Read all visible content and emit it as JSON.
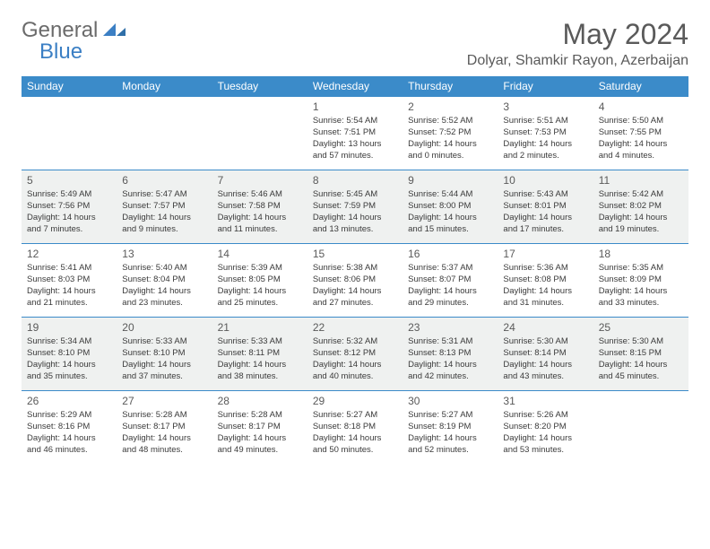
{
  "logo": {
    "text1": "General",
    "text2": "Blue"
  },
  "title": "May 2024",
  "location": "Dolyar, Shamkir Rayon, Azerbaijan",
  "days_of_week": [
    "Sunday",
    "Monday",
    "Tuesday",
    "Wednesday",
    "Thursday",
    "Friday",
    "Saturday"
  ],
  "colors": {
    "header_bg": "#3b8bc9",
    "header_text": "#ffffff",
    "shaded_row": "#eff1f0",
    "rule": "#3b8bc9",
    "text": "#3a3a3a",
    "title_text": "#5a5a5a",
    "logo_gray": "#6b6b6b",
    "logo_blue": "#3b7fc4"
  },
  "weeks": [
    {
      "shaded": false,
      "cells": [
        {
          "empty": true
        },
        {
          "empty": true
        },
        {
          "empty": true
        },
        {
          "day": "1",
          "sunrise": "Sunrise: 5:54 AM",
          "sunset": "Sunset: 7:51 PM",
          "daylight": "Daylight: 13 hours and 57 minutes."
        },
        {
          "day": "2",
          "sunrise": "Sunrise: 5:52 AM",
          "sunset": "Sunset: 7:52 PM",
          "daylight": "Daylight: 14 hours and 0 minutes."
        },
        {
          "day": "3",
          "sunrise": "Sunrise: 5:51 AM",
          "sunset": "Sunset: 7:53 PM",
          "daylight": "Daylight: 14 hours and 2 minutes."
        },
        {
          "day": "4",
          "sunrise": "Sunrise: 5:50 AM",
          "sunset": "Sunset: 7:55 PM",
          "daylight": "Daylight: 14 hours and 4 minutes."
        }
      ]
    },
    {
      "shaded": true,
      "cells": [
        {
          "day": "5",
          "sunrise": "Sunrise: 5:49 AM",
          "sunset": "Sunset: 7:56 PM",
          "daylight": "Daylight: 14 hours and 7 minutes."
        },
        {
          "day": "6",
          "sunrise": "Sunrise: 5:47 AM",
          "sunset": "Sunset: 7:57 PM",
          "daylight": "Daylight: 14 hours and 9 minutes."
        },
        {
          "day": "7",
          "sunrise": "Sunrise: 5:46 AM",
          "sunset": "Sunset: 7:58 PM",
          "daylight": "Daylight: 14 hours and 11 minutes."
        },
        {
          "day": "8",
          "sunrise": "Sunrise: 5:45 AM",
          "sunset": "Sunset: 7:59 PM",
          "daylight": "Daylight: 14 hours and 13 minutes."
        },
        {
          "day": "9",
          "sunrise": "Sunrise: 5:44 AM",
          "sunset": "Sunset: 8:00 PM",
          "daylight": "Daylight: 14 hours and 15 minutes."
        },
        {
          "day": "10",
          "sunrise": "Sunrise: 5:43 AM",
          "sunset": "Sunset: 8:01 PM",
          "daylight": "Daylight: 14 hours and 17 minutes."
        },
        {
          "day": "11",
          "sunrise": "Sunrise: 5:42 AM",
          "sunset": "Sunset: 8:02 PM",
          "daylight": "Daylight: 14 hours and 19 minutes."
        }
      ]
    },
    {
      "shaded": false,
      "cells": [
        {
          "day": "12",
          "sunrise": "Sunrise: 5:41 AM",
          "sunset": "Sunset: 8:03 PM",
          "daylight": "Daylight: 14 hours and 21 minutes."
        },
        {
          "day": "13",
          "sunrise": "Sunrise: 5:40 AM",
          "sunset": "Sunset: 8:04 PM",
          "daylight": "Daylight: 14 hours and 23 minutes."
        },
        {
          "day": "14",
          "sunrise": "Sunrise: 5:39 AM",
          "sunset": "Sunset: 8:05 PM",
          "daylight": "Daylight: 14 hours and 25 minutes."
        },
        {
          "day": "15",
          "sunrise": "Sunrise: 5:38 AM",
          "sunset": "Sunset: 8:06 PM",
          "daylight": "Daylight: 14 hours and 27 minutes."
        },
        {
          "day": "16",
          "sunrise": "Sunrise: 5:37 AM",
          "sunset": "Sunset: 8:07 PM",
          "daylight": "Daylight: 14 hours and 29 minutes."
        },
        {
          "day": "17",
          "sunrise": "Sunrise: 5:36 AM",
          "sunset": "Sunset: 8:08 PM",
          "daylight": "Daylight: 14 hours and 31 minutes."
        },
        {
          "day": "18",
          "sunrise": "Sunrise: 5:35 AM",
          "sunset": "Sunset: 8:09 PM",
          "daylight": "Daylight: 14 hours and 33 minutes."
        }
      ]
    },
    {
      "shaded": true,
      "cells": [
        {
          "day": "19",
          "sunrise": "Sunrise: 5:34 AM",
          "sunset": "Sunset: 8:10 PM",
          "daylight": "Daylight: 14 hours and 35 minutes."
        },
        {
          "day": "20",
          "sunrise": "Sunrise: 5:33 AM",
          "sunset": "Sunset: 8:10 PM",
          "daylight": "Daylight: 14 hours and 37 minutes."
        },
        {
          "day": "21",
          "sunrise": "Sunrise: 5:33 AM",
          "sunset": "Sunset: 8:11 PM",
          "daylight": "Daylight: 14 hours and 38 minutes."
        },
        {
          "day": "22",
          "sunrise": "Sunrise: 5:32 AM",
          "sunset": "Sunset: 8:12 PM",
          "daylight": "Daylight: 14 hours and 40 minutes."
        },
        {
          "day": "23",
          "sunrise": "Sunrise: 5:31 AM",
          "sunset": "Sunset: 8:13 PM",
          "daylight": "Daylight: 14 hours and 42 minutes."
        },
        {
          "day": "24",
          "sunrise": "Sunrise: 5:30 AM",
          "sunset": "Sunset: 8:14 PM",
          "daylight": "Daylight: 14 hours and 43 minutes."
        },
        {
          "day": "25",
          "sunrise": "Sunrise: 5:30 AM",
          "sunset": "Sunset: 8:15 PM",
          "daylight": "Daylight: 14 hours and 45 minutes."
        }
      ]
    },
    {
      "shaded": false,
      "cells": [
        {
          "day": "26",
          "sunrise": "Sunrise: 5:29 AM",
          "sunset": "Sunset: 8:16 PM",
          "daylight": "Daylight: 14 hours and 46 minutes."
        },
        {
          "day": "27",
          "sunrise": "Sunrise: 5:28 AM",
          "sunset": "Sunset: 8:17 PM",
          "daylight": "Daylight: 14 hours and 48 minutes."
        },
        {
          "day": "28",
          "sunrise": "Sunrise: 5:28 AM",
          "sunset": "Sunset: 8:17 PM",
          "daylight": "Daylight: 14 hours and 49 minutes."
        },
        {
          "day": "29",
          "sunrise": "Sunrise: 5:27 AM",
          "sunset": "Sunset: 8:18 PM",
          "daylight": "Daylight: 14 hours and 50 minutes."
        },
        {
          "day": "30",
          "sunrise": "Sunrise: 5:27 AM",
          "sunset": "Sunset: 8:19 PM",
          "daylight": "Daylight: 14 hours and 52 minutes."
        },
        {
          "day": "31",
          "sunrise": "Sunrise: 5:26 AM",
          "sunset": "Sunset: 8:20 PM",
          "daylight": "Daylight: 14 hours and 53 minutes."
        },
        {
          "empty": true
        }
      ]
    }
  ]
}
